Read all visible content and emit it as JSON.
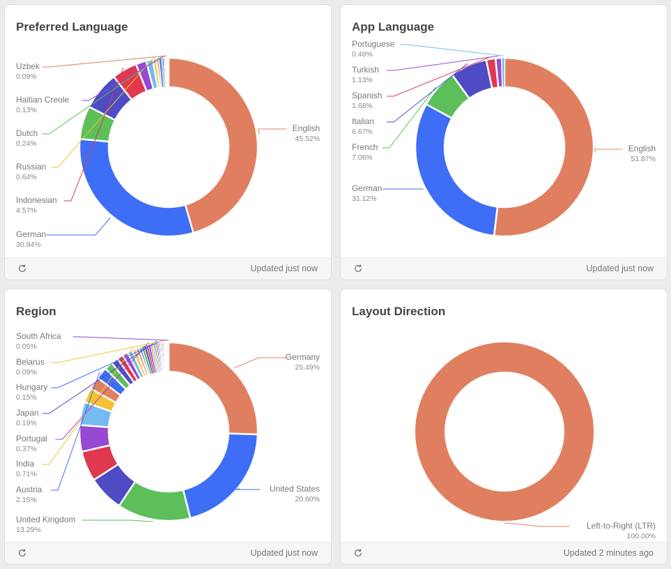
{
  "palette": [
    "#e07f5f",
    "#3d6ef5",
    "#5cbf5a",
    "#4f4bc4",
    "#e0384f",
    "#9649d1",
    "#74bbf2",
    "#f2c232"
  ],
  "cards": [
    {
      "title": "Preferred Language",
      "footer": "Updated just now",
      "refresh_icon": "refresh-icon",
      "chart_data": {
        "type": "pie",
        "donut": true,
        "slices": [
          {
            "label": "English",
            "value": 45.52
          },
          {
            "label": "German",
            "value": 30.94
          },
          {
            "label": "",
            "value": 6.0
          },
          {
            "label": "",
            "value": 7.0
          },
          {
            "label": "Indonesian",
            "value": 4.57
          },
          {
            "label": "",
            "value": 1.9
          },
          {
            "label": "",
            "value": 1.21
          },
          {
            "label": "Russian",
            "value": 0.64
          },
          {
            "label": "",
            "value": 0.5
          },
          {
            "label": "",
            "value": 0.4
          },
          {
            "label": "Dutch",
            "value": 0.24
          },
          {
            "label": "",
            "value": 0.2
          },
          {
            "label": "",
            "value": 0.15
          },
          {
            "label": "Haitian Creole",
            "value": 0.13
          },
          {
            "label": "",
            "value": 0.11
          },
          {
            "label": "",
            "value": 0.1
          },
          {
            "label": "Uzbek",
            "value": 0.09
          },
          {
            "label": "",
            "value": 0.08
          },
          {
            "label": "",
            "value": 0.07
          },
          {
            "label": "",
            "value": 0.06
          },
          {
            "label": "",
            "value": 0.05
          },
          {
            "label": "",
            "value": 0.04
          }
        ]
      }
    },
    {
      "title": "App Language",
      "footer": "Updated just now",
      "refresh_icon": "refresh-icon",
      "chart_data": {
        "type": "pie",
        "donut": true,
        "slices": [
          {
            "label": "English",
            "value": 51.87
          },
          {
            "label": "German",
            "value": 31.12
          },
          {
            "label": "French",
            "value": 7.06
          },
          {
            "label": "Italian",
            "value": 6.67
          },
          {
            "label": "Spanish",
            "value": 1.68
          },
          {
            "label": "Turkish",
            "value": 1.13
          },
          {
            "label": "Portuguese",
            "value": 0.48
          }
        ]
      }
    },
    {
      "title": "Region",
      "footer": "Updated just now",
      "refresh_icon": "refresh-icon",
      "chart_data": {
        "type": "pie",
        "donut": true,
        "slices": [
          {
            "label": "Germany",
            "value": 25.49
          },
          {
            "label": "United States",
            "value": 20.6
          },
          {
            "label": "United Kingdom",
            "value": 13.29
          },
          {
            "label": "",
            "value": 6.5
          },
          {
            "label": "",
            "value": 5.5
          },
          {
            "label": "",
            "value": 4.8
          },
          {
            "label": "",
            "value": 4.2
          },
          {
            "label": "",
            "value": 2.64
          },
          {
            "label": "",
            "value": 2.3
          },
          {
            "label": "Austria",
            "value": 2.15
          },
          {
            "label": "",
            "value": 1.5
          },
          {
            "label": "",
            "value": 1.3
          },
          {
            "label": "",
            "value": 1.1
          },
          {
            "label": "",
            "value": 1.0
          },
          {
            "label": "",
            "value": 0.9
          },
          {
            "label": "India",
            "value": 0.71
          },
          {
            "label": "",
            "value": 0.6
          },
          {
            "label": "",
            "value": 0.5
          },
          {
            "label": "",
            "value": 0.45
          },
          {
            "label": "",
            "value": 0.4
          },
          {
            "label": "",
            "value": 0.38
          },
          {
            "label": "Portugal",
            "value": 0.37
          },
          {
            "label": "",
            "value": 0.3
          },
          {
            "label": "",
            "value": 0.25
          },
          {
            "label": "",
            "value": 0.22
          },
          {
            "label": "",
            "value": 0.2
          },
          {
            "label": "",
            "value": 0.2
          },
          {
            "label": "Japan",
            "value": 0.19
          },
          {
            "label": "",
            "value": 0.17
          },
          {
            "label": "",
            "value": 0.16
          },
          {
            "label": "",
            "value": 0.16
          },
          {
            "label": "",
            "value": 0.15
          },
          {
            "label": "",
            "value": 0.15
          },
          {
            "label": "Hungary",
            "value": 0.15
          },
          {
            "label": "",
            "value": 0.13
          },
          {
            "label": "",
            "value": 0.12
          },
          {
            "label": "",
            "value": 0.11
          },
          {
            "label": "",
            "value": 0.1
          },
          {
            "label": "",
            "value": 0.1
          },
          {
            "label": "Belarus",
            "value": 0.09
          },
          {
            "label": "",
            "value": 0.08
          },
          {
            "label": "",
            "value": 0.07
          },
          {
            "label": "",
            "value": 0.06
          },
          {
            "label": "",
            "value": 0.06
          },
          {
            "label": "",
            "value": 0.05
          },
          {
            "label": "South Africa",
            "value": 0.05
          }
        ]
      }
    },
    {
      "title": "Layout Direction",
      "footer": "Updated 2 minutes ago",
      "refresh_icon": "refresh-icon",
      "chart_data": {
        "type": "pie",
        "donut": true,
        "slices": [
          {
            "label": "Left-to-Right (LTR)",
            "value": 100.0
          }
        ]
      }
    }
  ]
}
